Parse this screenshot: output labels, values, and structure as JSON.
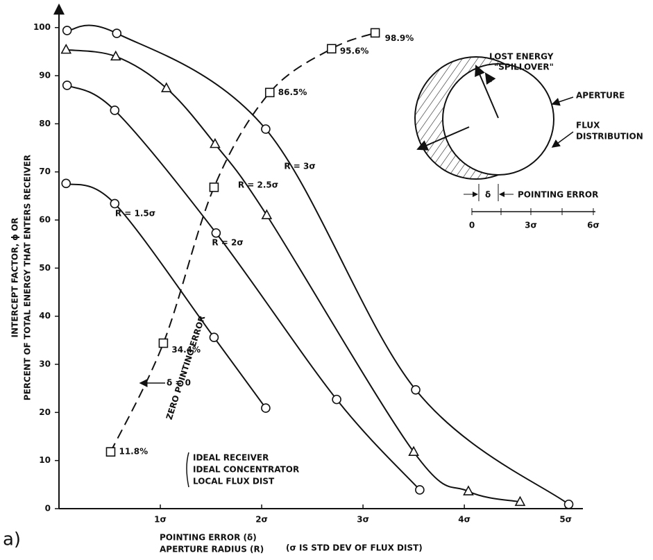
{
  "chart_data": {
    "type": "line",
    "ylabel": [
      "INTERCEPT FACTOR, ϕ OR",
      "PERCENT OF TOTAL ENERGY THAT ENTERS RECEIVER"
    ],
    "xlabel": [
      "POINTING ERROR (δ)",
      "APERTURE RADIUS (R)"
    ],
    "xnote": "(σ IS STD DEV OF FLUX DIST)",
    "panel": "a)",
    "xlim": [
      0,
      5.17
    ],
    "ylim": [
      0,
      104
    ],
    "xticks": [
      {
        "value": 1,
        "label": "1σ"
      },
      {
        "value": 2,
        "label": "2σ"
      },
      {
        "value": 3,
        "label": "3σ"
      },
      {
        "value": 4,
        "label": "4σ"
      },
      {
        "value": 5,
        "label": "5σ"
      }
    ],
    "yticks": [
      0,
      10,
      20,
      30,
      40,
      50,
      60,
      70,
      80,
      90,
      100
    ],
    "color": "#111",
    "series": [
      {
        "name": "R = 1.5σ",
        "marker": "circle",
        "x": [
          0.07,
          0.55,
          1.53,
          2.04
        ],
        "values": [
          67.6,
          63.4,
          35.6,
          20.9
        ]
      },
      {
        "name": "R = 2σ",
        "marker": "circle",
        "x": [
          0.08,
          0.55,
          1.55,
          2.74,
          3.56
        ],
        "values": [
          88.0,
          82.8,
          57.3,
          22.7,
          3.9
        ]
      },
      {
        "name": "R = 2.5σ",
        "marker": "triangle",
        "x": [
          0.07,
          0.56,
          1.06,
          1.54,
          2.05,
          3.5,
          4.04,
          4.55
        ],
        "values": [
          95.4,
          94.0,
          87.4,
          75.8,
          61.0,
          11.8,
          3.6,
          1.4
        ]
      },
      {
        "name": "R = 3σ",
        "marker": "circle",
        "x": [
          0.08,
          0.57,
          2.04,
          3.52,
          5.03
        ],
        "values": [
          99.4,
          98.8,
          78.9,
          24.7,
          0.9
        ]
      },
      {
        "name": "ZERO POINTING ERROR",
        "marker": "square",
        "dashed": true,
        "x": [
          0.51,
          1.03,
          1.53,
          2.08,
          2.69,
          3.12
        ],
        "values": [
          11.8,
          34.4,
          66.8,
          86.5,
          95.6,
          98.9
        ],
        "value_labels": [
          "11.8%",
          "34.4%",
          null,
          "86.5%",
          "95.6%",
          "98.9%"
        ]
      }
    ],
    "annotations": [
      "δ = 0",
      "IDEAL RECEIVER",
      "IDEAL CONCENTRATOR",
      "LOCAL FLUX DIST"
    ]
  },
  "inset": {
    "labels": [
      "LOST ENERGY",
      "\"SPILLOVER\"",
      "APERTURE",
      "FLUX",
      "DISTRIBUTION",
      "δ",
      "POINTING ERROR"
    ],
    "scale_ticks": [
      "0",
      "3σ",
      "6σ"
    ]
  }
}
